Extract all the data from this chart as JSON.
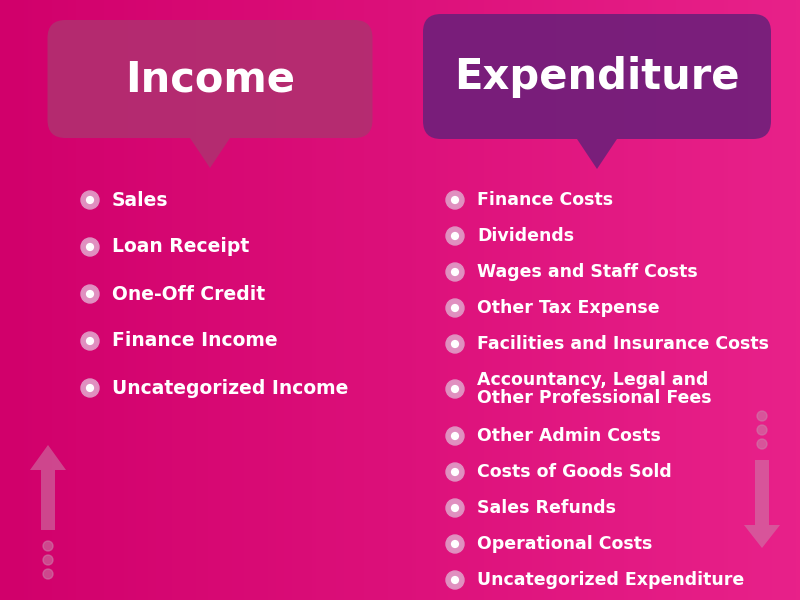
{
  "income_title": "Income",
  "expenditure_title": "Expenditure",
  "income_bubble_color": "#b03070",
  "expenditure_bubble_color": "#6b1f7a",
  "income_items": [
    "Sales",
    "Loan Receipt",
    "One-Off Credit",
    "Finance Income",
    "Uncategorized Income"
  ],
  "expenditure_items": [
    "Finance Costs",
    "Dividends",
    "Wages and Staff Costs",
    "Other Tax Expense",
    "Facilities and Insurance Costs",
    "Accountancy, Legal and|Other Professional Fees",
    "Other Admin Costs",
    "Costs of Goods Sold",
    "Sales Refunds",
    "Operational Costs",
    "Uncategorized Expenditure"
  ],
  "bullet_color": "#e090c0",
  "text_color": "#ffffff",
  "arrow_color": "#cc80aa",
  "bg_color_left": "#d4006a",
  "bg_color_right": "#e8208a",
  "figsize": [
    8.0,
    6.0
  ],
  "dpi": 100
}
